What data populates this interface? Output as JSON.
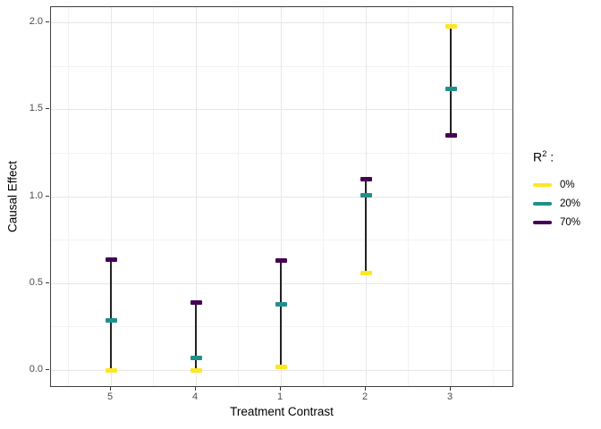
{
  "chart_data": {
    "type": "scatter",
    "subtype": "pointrange",
    "xlabel": "Treatment Contrast",
    "ylabel": "Causal Effect",
    "categories": [
      "5",
      "4",
      "1",
      "2",
      "3"
    ],
    "series": [
      {
        "name": "0%",
        "color": "#FDE725",
        "values": [
          0.0,
          0.0,
          0.02,
          0.56,
          1.98
        ]
      },
      {
        "name": "20%",
        "color": "#21908C",
        "values": [
          0.29,
          0.07,
          0.38,
          1.01,
          1.62
        ]
      },
      {
        "name": "70%",
        "color": "#440154",
        "values": [
          0.64,
          0.39,
          0.63,
          1.1,
          1.35
        ]
      }
    ],
    "ylim": [
      -0.1,
      2.1
    ],
    "yticks": [
      "0.0",
      "0.5",
      "1.0",
      "1.5",
      "2.0"
    ],
    "grid": "major+minor",
    "legend_position": "right"
  },
  "legend": {
    "title_base": "R",
    "title_sup": "2",
    "title_suffix": " :"
  },
  "colors": {
    "range_line": "#222222",
    "grid_major": "#E7E7E7",
    "grid_minor": "#F3F3F3",
    "panel_border": "#3F3F3F",
    "tick_mark": "#333333",
    "tick_label": "#4D4D4D",
    "axis_title": "#000000"
  }
}
